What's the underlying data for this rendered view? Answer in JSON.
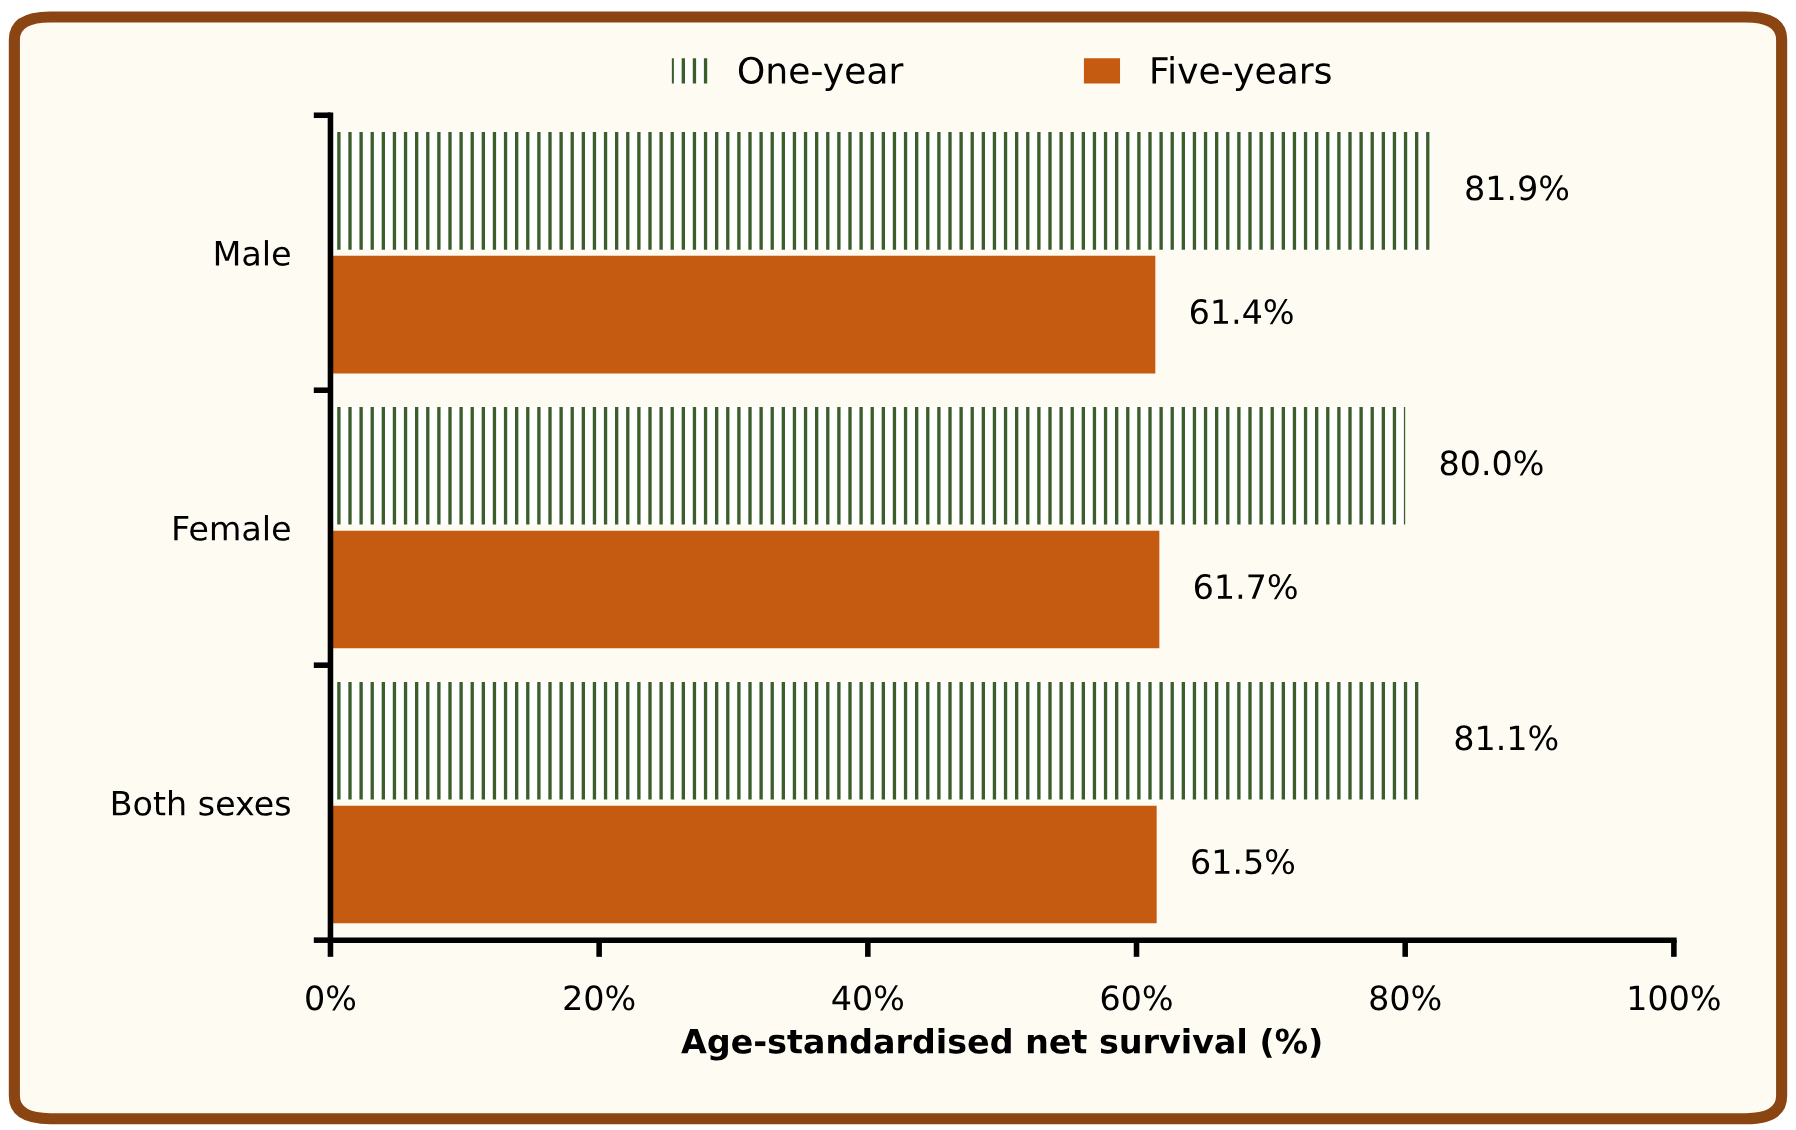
{
  "chart_data": {
    "type": "bar",
    "orientation": "horizontal",
    "xlabel": "Age-standardised net survival (%)",
    "categories": [
      "Male",
      "Female",
      "Both sexes"
    ],
    "series": [
      {
        "name": "One-year",
        "color": "#3b5e2b",
        "values": [
          81.9,
          80.0,
          81.1
        ],
        "value_labels": [
          "81.9%",
          "80.0%",
          "81.1%"
        ]
      },
      {
        "name": "Five-years",
        "color": "#c55a11",
        "values": [
          61.4,
          61.7,
          61.5
        ],
        "value_labels": [
          "61.4%",
          "61.7%",
          "61.5%"
        ]
      }
    ],
    "xlim": [
      0,
      100
    ],
    "xticks": [
      {
        "value": 0,
        "label": "0%"
      },
      {
        "value": 20,
        "label": "20%"
      },
      {
        "value": 40,
        "label": "40%"
      },
      {
        "value": 60,
        "label": "60%"
      },
      {
        "value": 80,
        "label": "80%"
      },
      {
        "value": 100,
        "label": "100%"
      }
    ],
    "legend": "top",
    "grid": false
  }
}
